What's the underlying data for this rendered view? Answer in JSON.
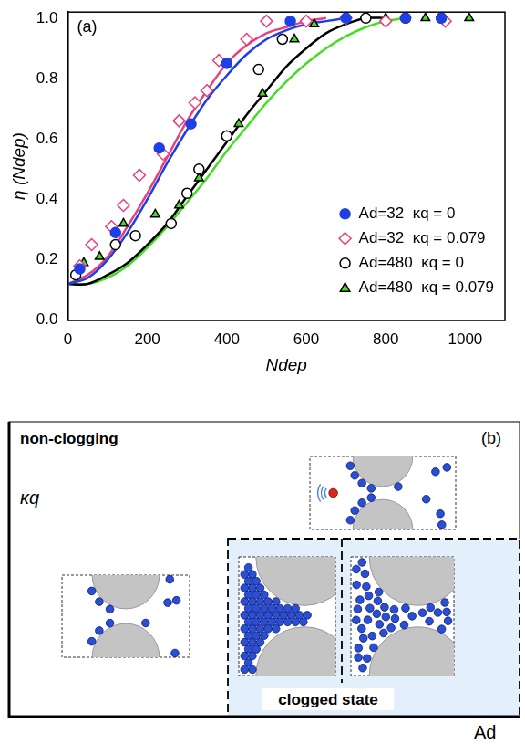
{
  "chart_data": {
    "type": "scatter",
    "label": "(a)",
    "xlabel": "Ndep",
    "ylabel": "η (Ndep)",
    "xlim": [
      0,
      1100
    ],
    "xticks": [
      0,
      200,
      400,
      600,
      800,
      1000
    ],
    "ylim": [
      0,
      1.02
    ],
    "yticks": [
      {
        "value": 0,
        "label": "0.0"
      },
      0.2,
      0.4,
      0.6,
      0.8,
      {
        "value": 1,
        "label": "1.0"
      }
    ],
    "grid": false,
    "legend": "lower right",
    "series": [
      {
        "name": "Ad=32  κq = 0",
        "color": "#1f3fe6",
        "marker": "circle",
        "x": [
          30,
          120,
          230,
          310,
          400,
          560,
          700,
          850,
          940
        ],
        "values": [
          0.17,
          0.29,
          0.57,
          0.65,
          0.85,
          0.99,
          1.0,
          1.0,
          1.0
        ],
        "fit": {
          "x": [
            0,
            50,
            100,
            150,
            200,
            250,
            300,
            350,
            400,
            450,
            500,
            550,
            600,
            650,
            700
          ],
          "values": [
            0.12,
            0.14,
            0.2,
            0.29,
            0.4,
            0.52,
            0.63,
            0.73,
            0.81,
            0.88,
            0.93,
            0.96,
            0.98,
            0.99,
            1.0
          ]
        }
      },
      {
        "name": "Ad=32  κq = 0.079",
        "color": "#e8407f",
        "marker": "open diamond",
        "x": [
          30,
          60,
          110,
          140,
          180,
          240,
          280,
          320,
          350,
          380,
          450,
          500,
          600,
          700,
          800,
          950
        ],
        "values": [
          0.18,
          0.25,
          0.31,
          0.38,
          0.48,
          0.55,
          0.66,
          0.72,
          0.76,
          0.86,
          0.93,
          0.99,
          0.99,
          1.0,
          0.99,
          0.99
        ],
        "fit": {
          "x": [
            0,
            50,
            100,
            150,
            200,
            250,
            300,
            350,
            400,
            450,
            500,
            550,
            600,
            650
          ],
          "values": [
            0.12,
            0.15,
            0.21,
            0.31,
            0.42,
            0.54,
            0.66,
            0.76,
            0.85,
            0.91,
            0.95,
            0.97,
            0.99,
            1.0
          ]
        }
      },
      {
        "name": "Ad=480  κq = 0",
        "color": "#000000",
        "marker": "open circle",
        "x": [
          20,
          120,
          170,
          260,
          300,
          330,
          400,
          480,
          540,
          750,
          850,
          940
        ],
        "values": [
          0.15,
          0.25,
          0.28,
          0.32,
          0.42,
          0.5,
          0.61,
          0.83,
          0.93,
          1.0,
          1.0,
          1.0
        ],
        "fit": {
          "x": [
            0,
            50,
            100,
            150,
            200,
            250,
            300,
            350,
            400,
            450,
            500,
            550,
            600,
            650,
            700,
            750,
            800
          ],
          "values": [
            0.12,
            0.12,
            0.15,
            0.19,
            0.25,
            0.32,
            0.41,
            0.5,
            0.59,
            0.68,
            0.76,
            0.84,
            0.9,
            0.95,
            0.98,
            1.0,
            1.0
          ]
        }
      },
      {
        "name": "Ad=480  κq = 0.079",
        "color": "#44dd22",
        "marker": "triangle",
        "x": [
          40,
          80,
          140,
          220,
          280,
          330,
          400,
          430,
          490,
          570,
          620,
          700,
          800,
          900,
          1010
        ],
        "values": [
          0.19,
          0.21,
          0.32,
          0.35,
          0.38,
          0.47,
          0.61,
          0.65,
          0.75,
          0.93,
          0.98,
          1.0,
          1.0,
          1.0,
          1.0
        ],
        "fit": {
          "x": [
            0,
            50,
            100,
            150,
            200,
            250,
            300,
            350,
            400,
            450,
            500,
            550,
            600,
            650,
            700,
            750,
            800,
            850
          ],
          "values": [
            0.12,
            0.12,
            0.14,
            0.18,
            0.24,
            0.31,
            0.39,
            0.47,
            0.56,
            0.64,
            0.72,
            0.79,
            0.85,
            0.9,
            0.94,
            0.97,
            0.99,
            1.0
          ]
        }
      }
    ]
  },
  "diagram": {
    "label": "(b)",
    "y_axis": "κq",
    "x_axis": "Ad",
    "regions": {
      "free": "non-clogging",
      "clogged": "clogged state"
    }
  }
}
